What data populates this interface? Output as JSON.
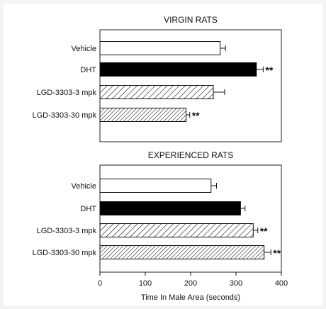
{
  "chart_data": [
    {
      "type": "bar",
      "orientation": "horizontal",
      "title": "VIRGIN RATS",
      "categories": [
        "Vehicle",
        "DHT",
        "LGD-3303-3 mpk",
        "LGD-3303-30 mpk"
      ],
      "values": [
        265,
        345,
        250,
        190
      ],
      "errors": [
        12,
        15,
        25,
        8
      ],
      "annotations": [
        "",
        "**",
        "",
        "**"
      ],
      "fills": [
        "open",
        "solid",
        "hatched",
        "hatched-dense"
      ],
      "xlim": [
        0,
        400
      ]
    },
    {
      "type": "bar",
      "orientation": "horizontal",
      "title": "EXPERIENCED RATS",
      "categories": [
        "Vehicle",
        "DHT",
        "LGD-3303-3 mpk",
        "LGD-3303-30 mpk"
      ],
      "values": [
        245,
        310,
        338,
        362
      ],
      "errors": [
        12,
        10,
        10,
        15
      ],
      "annotations": [
        "",
        "",
        "**",
        "**"
      ],
      "fills": [
        "open",
        "solid",
        "hatched",
        "hatched-dense"
      ],
      "xlim": [
        0,
        400
      ]
    }
  ],
  "x_axis": {
    "label": "Time In Male Area (seconds)",
    "ticks": [
      0,
      100,
      200,
      300,
      400
    ]
  },
  "colors": {
    "bar_edge": "#111111",
    "solid": "#000000",
    "open": "#ffffff",
    "frame_bg": "#f4f4f6"
  }
}
